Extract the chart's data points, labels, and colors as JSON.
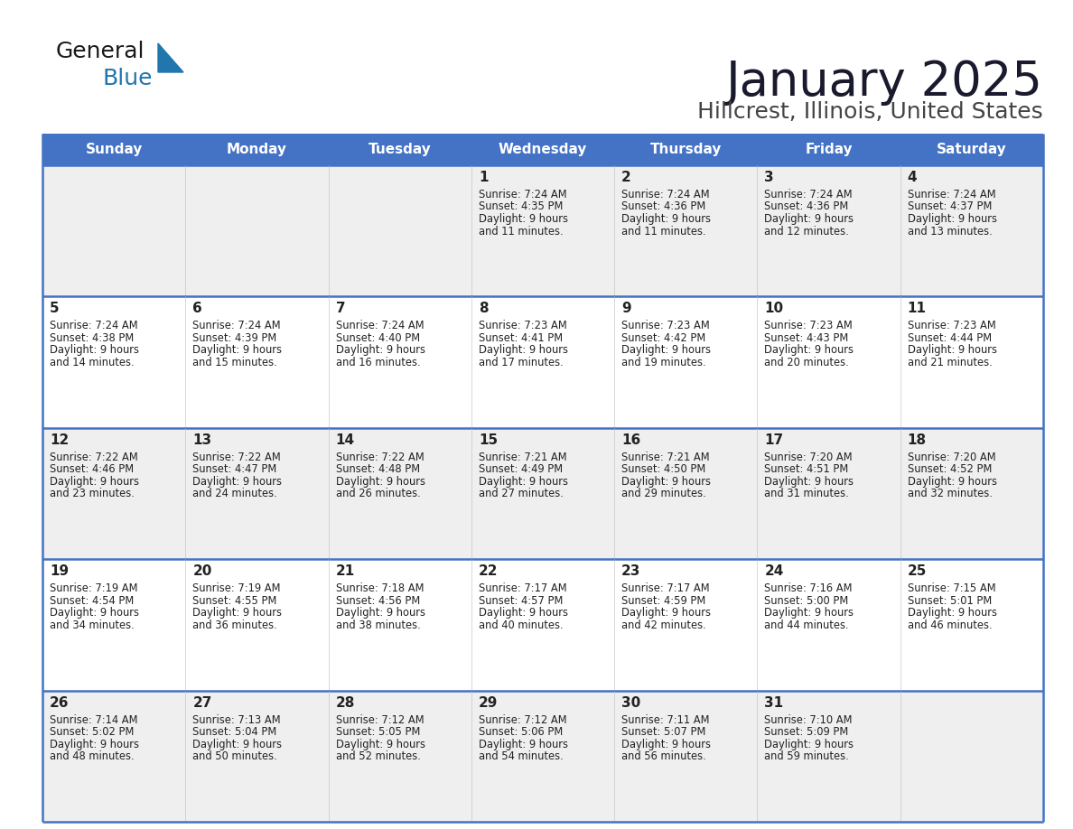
{
  "title": "January 2025",
  "subtitle": "Hillcrest, Illinois, United States",
  "header_color": "#4472C4",
  "header_text_color": "#FFFFFF",
  "cell_bg_week1": "#EFEFEF",
  "cell_bg_week2": "#FFFFFF",
  "border_color": "#4472C4",
  "text_color": "#222222",
  "day_names": [
    "Sunday",
    "Monday",
    "Tuesday",
    "Wednesday",
    "Thursday",
    "Friday",
    "Saturday"
  ],
  "weeks": [
    [
      {
        "day": null,
        "sunrise": null,
        "sunset": null,
        "daylight": null
      },
      {
        "day": null,
        "sunrise": null,
        "sunset": null,
        "daylight": null
      },
      {
        "day": null,
        "sunrise": null,
        "sunset": null,
        "daylight": null
      },
      {
        "day": 1,
        "sunrise": "7:24 AM",
        "sunset": "4:35 PM",
        "daylight": "9 hours",
        "daylight2": "and 11 minutes."
      },
      {
        "day": 2,
        "sunrise": "7:24 AM",
        "sunset": "4:36 PM",
        "daylight": "9 hours",
        "daylight2": "and 11 minutes."
      },
      {
        "day": 3,
        "sunrise": "7:24 AM",
        "sunset": "4:36 PM",
        "daylight": "9 hours",
        "daylight2": "and 12 minutes."
      },
      {
        "day": 4,
        "sunrise": "7:24 AM",
        "sunset": "4:37 PM",
        "daylight": "9 hours",
        "daylight2": "and 13 minutes."
      }
    ],
    [
      {
        "day": 5,
        "sunrise": "7:24 AM",
        "sunset": "4:38 PM",
        "daylight": "9 hours",
        "daylight2": "and 14 minutes."
      },
      {
        "day": 6,
        "sunrise": "7:24 AM",
        "sunset": "4:39 PM",
        "daylight": "9 hours",
        "daylight2": "and 15 minutes."
      },
      {
        "day": 7,
        "sunrise": "7:24 AM",
        "sunset": "4:40 PM",
        "daylight": "9 hours",
        "daylight2": "and 16 minutes."
      },
      {
        "day": 8,
        "sunrise": "7:23 AM",
        "sunset": "4:41 PM",
        "daylight": "9 hours",
        "daylight2": "and 17 minutes."
      },
      {
        "day": 9,
        "sunrise": "7:23 AM",
        "sunset": "4:42 PM",
        "daylight": "9 hours",
        "daylight2": "and 19 minutes."
      },
      {
        "day": 10,
        "sunrise": "7:23 AM",
        "sunset": "4:43 PM",
        "daylight": "9 hours",
        "daylight2": "and 20 minutes."
      },
      {
        "day": 11,
        "sunrise": "7:23 AM",
        "sunset": "4:44 PM",
        "daylight": "9 hours",
        "daylight2": "and 21 minutes."
      }
    ],
    [
      {
        "day": 12,
        "sunrise": "7:22 AM",
        "sunset": "4:46 PM",
        "daylight": "9 hours",
        "daylight2": "and 23 minutes."
      },
      {
        "day": 13,
        "sunrise": "7:22 AM",
        "sunset": "4:47 PM",
        "daylight": "9 hours",
        "daylight2": "and 24 minutes."
      },
      {
        "day": 14,
        "sunrise": "7:22 AM",
        "sunset": "4:48 PM",
        "daylight": "9 hours",
        "daylight2": "and 26 minutes."
      },
      {
        "day": 15,
        "sunrise": "7:21 AM",
        "sunset": "4:49 PM",
        "daylight": "9 hours",
        "daylight2": "and 27 minutes."
      },
      {
        "day": 16,
        "sunrise": "7:21 AM",
        "sunset": "4:50 PM",
        "daylight": "9 hours",
        "daylight2": "and 29 minutes."
      },
      {
        "day": 17,
        "sunrise": "7:20 AM",
        "sunset": "4:51 PM",
        "daylight": "9 hours",
        "daylight2": "and 31 minutes."
      },
      {
        "day": 18,
        "sunrise": "7:20 AM",
        "sunset": "4:52 PM",
        "daylight": "9 hours",
        "daylight2": "and 32 minutes."
      }
    ],
    [
      {
        "day": 19,
        "sunrise": "7:19 AM",
        "sunset": "4:54 PM",
        "daylight": "9 hours",
        "daylight2": "and 34 minutes."
      },
      {
        "day": 20,
        "sunrise": "7:19 AM",
        "sunset": "4:55 PM",
        "daylight": "9 hours",
        "daylight2": "and 36 minutes."
      },
      {
        "day": 21,
        "sunrise": "7:18 AM",
        "sunset": "4:56 PM",
        "daylight": "9 hours",
        "daylight2": "and 38 minutes."
      },
      {
        "day": 22,
        "sunrise": "7:17 AM",
        "sunset": "4:57 PM",
        "daylight": "9 hours",
        "daylight2": "and 40 minutes."
      },
      {
        "day": 23,
        "sunrise": "7:17 AM",
        "sunset": "4:59 PM",
        "daylight": "9 hours",
        "daylight2": "and 42 minutes."
      },
      {
        "day": 24,
        "sunrise": "7:16 AM",
        "sunset": "5:00 PM",
        "daylight": "9 hours",
        "daylight2": "and 44 minutes."
      },
      {
        "day": 25,
        "sunrise": "7:15 AM",
        "sunset": "5:01 PM",
        "daylight": "9 hours",
        "daylight2": "and 46 minutes."
      }
    ],
    [
      {
        "day": 26,
        "sunrise": "7:14 AM",
        "sunset": "5:02 PM",
        "daylight": "9 hours",
        "daylight2": "and 48 minutes."
      },
      {
        "day": 27,
        "sunrise": "7:13 AM",
        "sunset": "5:04 PM",
        "daylight": "9 hours",
        "daylight2": "and 50 minutes."
      },
      {
        "day": 28,
        "sunrise": "7:12 AM",
        "sunset": "5:05 PM",
        "daylight": "9 hours",
        "daylight2": "and 52 minutes."
      },
      {
        "day": 29,
        "sunrise": "7:12 AM",
        "sunset": "5:06 PM",
        "daylight": "9 hours",
        "daylight2": "and 54 minutes."
      },
      {
        "day": 30,
        "sunrise": "7:11 AM",
        "sunset": "5:07 PM",
        "daylight": "9 hours",
        "daylight2": "and 56 minutes."
      },
      {
        "day": 31,
        "sunrise": "7:10 AM",
        "sunset": "5:09 PM",
        "daylight": "9 hours",
        "daylight2": "and 59 minutes."
      },
      {
        "day": null,
        "sunrise": null,
        "sunset": null,
        "daylight": null,
        "daylight2": null
      }
    ]
  ]
}
